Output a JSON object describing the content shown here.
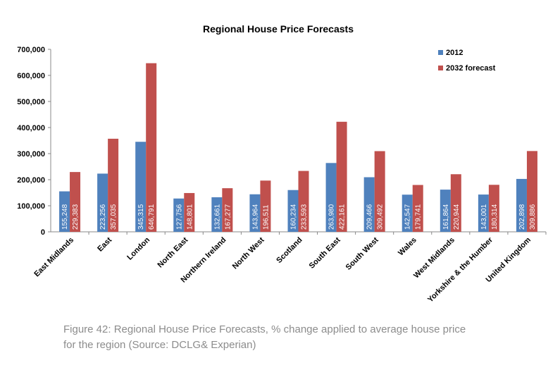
{
  "chart_data": {
    "type": "bar",
    "title": "Regional House Price Forecasts",
    "categories": [
      "East Midlands",
      "East",
      "London",
      "North East",
      "Northern Ireland",
      "North West",
      "Scotland",
      "South East",
      "South West",
      "Wales",
      "West Midlands",
      "Yorkshire & the Humber",
      "United Kingdom"
    ],
    "series": [
      {
        "name": "2012",
        "color": "#4f81bd",
        "values": [
          155248,
          223256,
          345315,
          127756,
          132661,
          143964,
          160234,
          263980,
          209466,
          142547,
          161864,
          143001,
          202898
        ],
        "value_labels": [
          "155,248",
          "223,256",
          "345,315",
          "127,756",
          "132,661",
          "143,964",
          "160,234",
          "263,980",
          "209,466",
          "142,547",
          "161,864",
          "143,001",
          "202,898"
        ]
      },
      {
        "name": "2032 forecast",
        "color": "#c0504d",
        "values": [
          229383,
          357035,
          646791,
          148801,
          167277,
          196511,
          233593,
          422161,
          309492,
          179741,
          220944,
          180314,
          309886
        ],
        "value_labels": [
          "229,383",
          "357,035",
          "646,791",
          "148,801",
          "167,277",
          "196,511",
          "233,593",
          "422,161",
          "309,492",
          "179,741",
          "220,944",
          "180,314",
          "309,886"
        ]
      }
    ],
    "ylim": [
      0,
      700000
    ],
    "yticks": [
      0,
      {
        "value": 100000,
        "label": "100,000"
      },
      {
        "value": 200000,
        "label": "200,000"
      },
      {
        "value": 300000,
        "label": "300,000"
      },
      {
        "value": 400000,
        "label": "400,000"
      },
      {
        "value": 500000,
        "label": "500,000"
      },
      {
        "value": 600000,
        "label": "600,000"
      },
      {
        "value": 700000,
        "label": "700,000"
      }
    ],
    "grid": false,
    "legend": "top-right"
  },
  "caption": [
    "Figure 42: Regional House Price Forecasts, % change applied to average house price",
    "for the region (Source: DCLG& Experian)"
  ]
}
